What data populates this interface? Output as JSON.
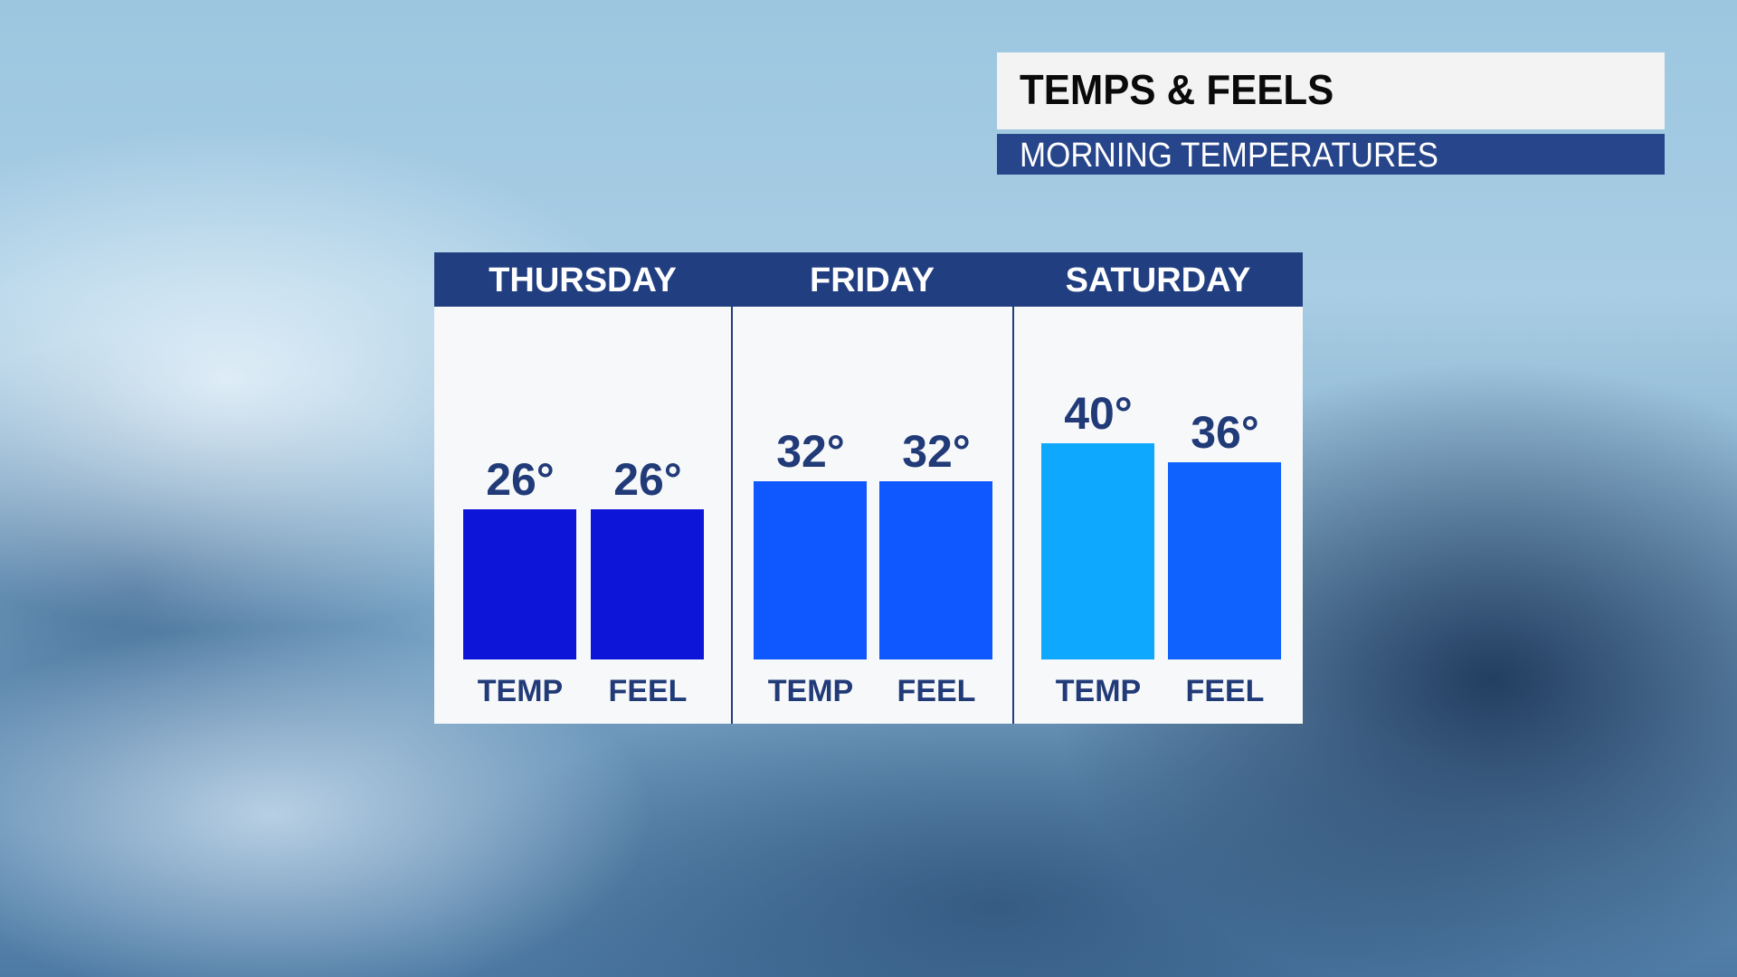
{
  "header": {
    "title": "TEMPS & FEELS",
    "subtitle": "MORNING TEMPERATURES"
  },
  "chart_data": {
    "type": "bar",
    "unit": "°",
    "categories": [
      "THURSDAY",
      "FRIDAY",
      "SATURDAY"
    ],
    "bar_labels": [
      "TEMP",
      "FEEL"
    ],
    "groups": [
      {
        "day": "THURSDAY",
        "bars": [
          {
            "label": "TEMP",
            "value": 26,
            "display": "26°",
            "color": "#0d16d8"
          },
          {
            "label": "FEEL",
            "value": 26,
            "display": "26°",
            "color": "#0d16d8"
          }
        ]
      },
      {
        "day": "FRIDAY",
        "bars": [
          {
            "label": "TEMP",
            "value": 32,
            "display": "32°",
            "color": "#0f58ff"
          },
          {
            "label": "FEEL",
            "value": 32,
            "display": "32°",
            "color": "#0f58ff"
          }
        ]
      },
      {
        "day": "SATURDAY",
        "bars": [
          {
            "label": "TEMP",
            "value": 40,
            "display": "40°",
            "color": "#0ea8ff"
          },
          {
            "label": "FEEL",
            "value": 36,
            "display": "36°",
            "color": "#1062ff"
          }
        ]
      }
    ],
    "colors": {
      "header": "#213e80",
      "text": "#213a78",
      "panel": "#f7f8f9"
    }
  }
}
